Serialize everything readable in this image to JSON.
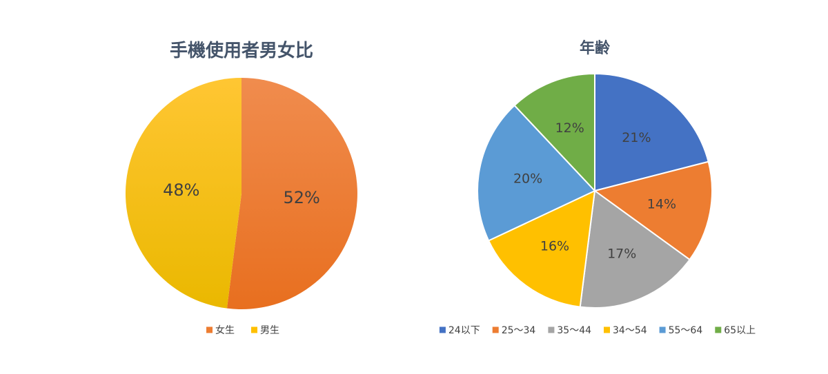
{
  "chart_data": [
    {
      "type": "pie",
      "title": "手機使用者男女比",
      "categories": [
        "女生",
        "男生"
      ],
      "values": [
        52,
        48
      ],
      "labels": [
        "52%",
        "48%"
      ],
      "colors": [
        "#ed7d31",
        "#ffc000"
      ],
      "legend": "bottom",
      "start_angle": 0,
      "direction": "clockwise"
    },
    {
      "type": "pie",
      "title": "年齢",
      "categories": [
        "24以下",
        "25～34",
        "35～44",
        "34～54",
        "55～64",
        "65以上"
      ],
      "values": [
        21,
        14,
        17,
        16,
        20,
        12
      ],
      "labels": [
        "21%",
        "14%",
        "17%",
        "16%",
        "20%",
        "12%"
      ],
      "colors": [
        "#4472c4",
        "#ed7d31",
        "#a5a5a5",
        "#ffc000",
        "#5b9bd5",
        "#70ad47"
      ],
      "legend": "bottom",
      "start_angle": 0,
      "direction": "clockwise"
    }
  ]
}
